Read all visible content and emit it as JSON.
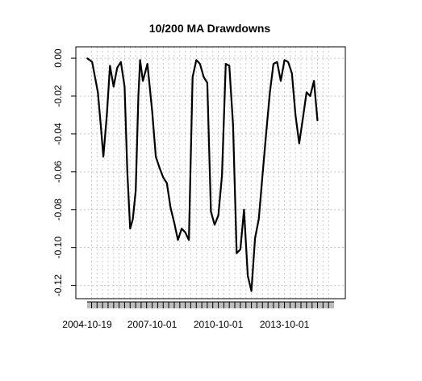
{
  "chart_data": {
    "type": "line",
    "title": "10/200 MA Drawdowns",
    "xlabel": "",
    "ylabel": "",
    "grid": true,
    "x_ticks": [
      "2004-10-19",
      "2007-10-01",
      "2010-10-01",
      "2013-10-01"
    ],
    "xlim": [
      "2004-10-19",
      "2015-12-31"
    ],
    "y_ticks": [
      0.0,
      -0.02,
      -0.04,
      -0.06,
      -0.08,
      -0.1,
      -0.12
    ],
    "y_tick_labels": [
      "0.00",
      "-0.02",
      "-0.04",
      "-0.06",
      "-0.08",
      "-0.10",
      "-0.12"
    ],
    "ylim": [
      -0.127,
      0.006
    ],
    "series": [
      {
        "color": "#000000",
        "x": [
          "2004-10-19",
          "2005-01-10",
          "2005-04-15",
          "2005-06-01",
          "2005-07-15",
          "2005-09-10",
          "2005-11-01",
          "2006-01-01",
          "2006-03-01",
          "2006-05-01",
          "2006-07-01",
          "2006-08-15",
          "2006-10-01",
          "2006-11-15",
          "2007-01-01",
          "2007-02-15",
          "2007-03-15",
          "2007-05-01",
          "2007-07-15",
          "2007-10-01",
          "2007-12-01",
          "2008-02-01",
          "2008-04-01",
          "2008-06-01",
          "2008-08-01",
          "2008-10-01",
          "2008-12-01",
          "2009-02-01",
          "2009-04-01",
          "2009-06-01",
          "2009-08-01",
          "2009-10-01",
          "2009-12-01",
          "2010-02-01",
          "2010-04-01",
          "2010-06-01",
          "2010-08-01",
          "2010-10-01",
          "2010-12-01",
          "2011-02-01",
          "2011-04-01",
          "2011-06-01",
          "2011-08-01",
          "2011-10-01",
          "2011-12-01",
          "2012-02-01",
          "2012-04-01",
          "2012-06-01",
          "2012-08-01",
          "2012-10-01",
          "2012-12-01",
          "2013-02-01",
          "2013-04-01",
          "2013-06-01",
          "2013-08-01",
          "2013-10-01",
          "2013-12-01",
          "2014-02-01",
          "2014-04-01",
          "2014-06-01",
          "2014-08-01",
          "2014-10-01",
          "2014-12-01",
          "2015-02-01",
          "2015-04-01"
        ],
        "values": [
          0.0,
          -0.002,
          -0.018,
          -0.035,
          -0.052,
          -0.03,
          -0.004,
          -0.015,
          -0.005,
          -0.002,
          -0.015,
          -0.06,
          -0.09,
          -0.085,
          -0.07,
          -0.02,
          -0.001,
          -0.012,
          -0.003,
          -0.028,
          -0.052,
          -0.058,
          -0.063,
          -0.066,
          -0.079,
          -0.087,
          -0.096,
          -0.09,
          -0.092,
          -0.096,
          -0.01,
          -0.001,
          -0.003,
          -0.01,
          -0.013,
          -0.081,
          -0.088,
          -0.083,
          -0.062,
          -0.003,
          -0.004,
          -0.035,
          -0.103,
          -0.101,
          -0.08,
          -0.115,
          -0.123,
          -0.095,
          -0.085,
          -0.062,
          -0.04,
          -0.018,
          -0.003,
          -0.002,
          -0.012,
          -0.001,
          -0.002,
          -0.008,
          -0.03,
          -0.045,
          -0.032,
          -0.018,
          -0.02,
          -0.012,
          -0.033
        ]
      }
    ]
  }
}
